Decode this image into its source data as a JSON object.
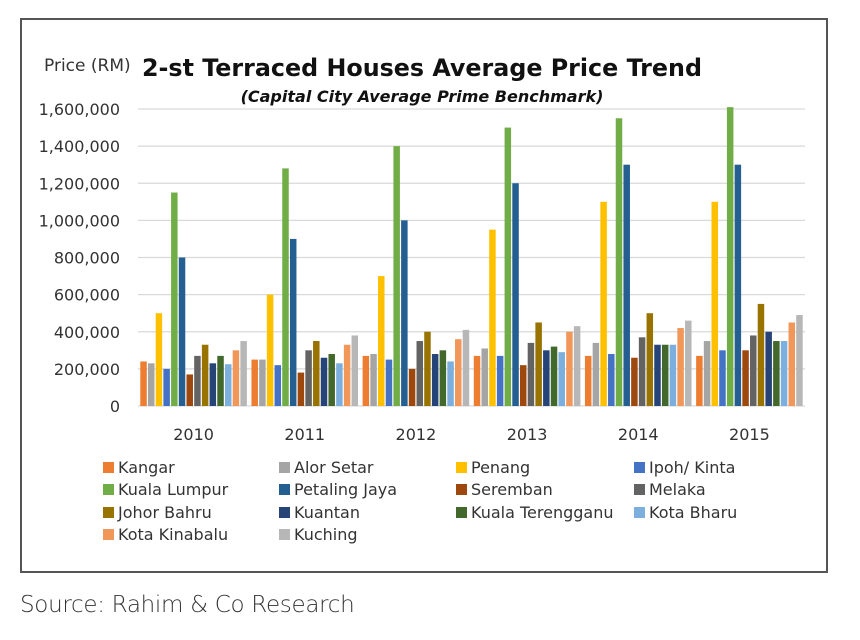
{
  "chart_data": {
    "type": "bar",
    "title": "2-st Terraced Houses Average Price Trend",
    "subtitle": "(Capital City Average Prime Benchmark)",
    "ylabel": "Price (RM)",
    "xlabel": "",
    "ylim": [
      0,
      1600000
    ],
    "yticks": [
      0,
      200000,
      400000,
      600000,
      800000,
      1000000,
      1200000,
      1400000,
      1600000
    ],
    "ytick_labels": [
      "0",
      "200,000",
      "400,000",
      "600,000",
      "800,000",
      "1,000,000",
      "1,200,000",
      "1,400,000",
      "1,600,000"
    ],
    "grid": true,
    "legend_position": "bottom",
    "categories": [
      "2010",
      "2011",
      "2012",
      "2013",
      "2014",
      "2015"
    ],
    "series": [
      {
        "name": "Kangar",
        "color": "#ED7D31",
        "values": [
          240000,
          250000,
          270000,
          270000,
          270000,
          270000
        ]
      },
      {
        "name": "Alor Setar",
        "color": "#A5A5A5",
        "values": [
          230000,
          250000,
          280000,
          310000,
          340000,
          350000
        ]
      },
      {
        "name": "Penang",
        "color": "#FFC000",
        "values": [
          500000,
          600000,
          700000,
          950000,
          1100000,
          1100000
        ]
      },
      {
        "name": "Ipoh/ Kinta",
        "color": "#4472C4",
        "values": [
          200000,
          220000,
          250000,
          270000,
          280000,
          300000
        ]
      },
      {
        "name": "Kuala Lumpur",
        "color": "#70AD47",
        "values": [
          1150000,
          1280000,
          1400000,
          1500000,
          1550000,
          1610000
        ]
      },
      {
        "name": "Petaling Jaya",
        "color": "#255E91",
        "values": [
          800000,
          900000,
          1000000,
          1200000,
          1300000,
          1300000
        ]
      },
      {
        "name": "Seremban",
        "color": "#9E480E",
        "values": [
          170000,
          180000,
          200000,
          220000,
          260000,
          300000
        ]
      },
      {
        "name": "Melaka",
        "color": "#636363",
        "values": [
          270000,
          300000,
          350000,
          340000,
          370000,
          380000
        ]
      },
      {
        "name": "Johor Bahru",
        "color": "#997300",
        "values": [
          330000,
          350000,
          400000,
          450000,
          500000,
          550000
        ]
      },
      {
        "name": "Kuantan",
        "color": "#264478",
        "values": [
          230000,
          260000,
          280000,
          300000,
          330000,
          400000
        ]
      },
      {
        "name": "Kuala Terengganu",
        "color": "#43682B",
        "values": [
          270000,
          280000,
          300000,
          320000,
          330000,
          350000
        ]
      },
      {
        "name": "Kota Bharu",
        "color": "#7CAFDD",
        "values": [
          225000,
          230000,
          240000,
          290000,
          330000,
          350000
        ]
      },
      {
        "name": "Kota Kinabalu",
        "color": "#F1975A",
        "values": [
          300000,
          330000,
          360000,
          400000,
          420000,
          450000
        ]
      },
      {
        "name": "Kuching",
        "color": "#B7B7B7",
        "values": [
          350000,
          380000,
          410000,
          430000,
          460000,
          490000
        ]
      }
    ]
  },
  "source": "Source: Rahim & Co Research"
}
